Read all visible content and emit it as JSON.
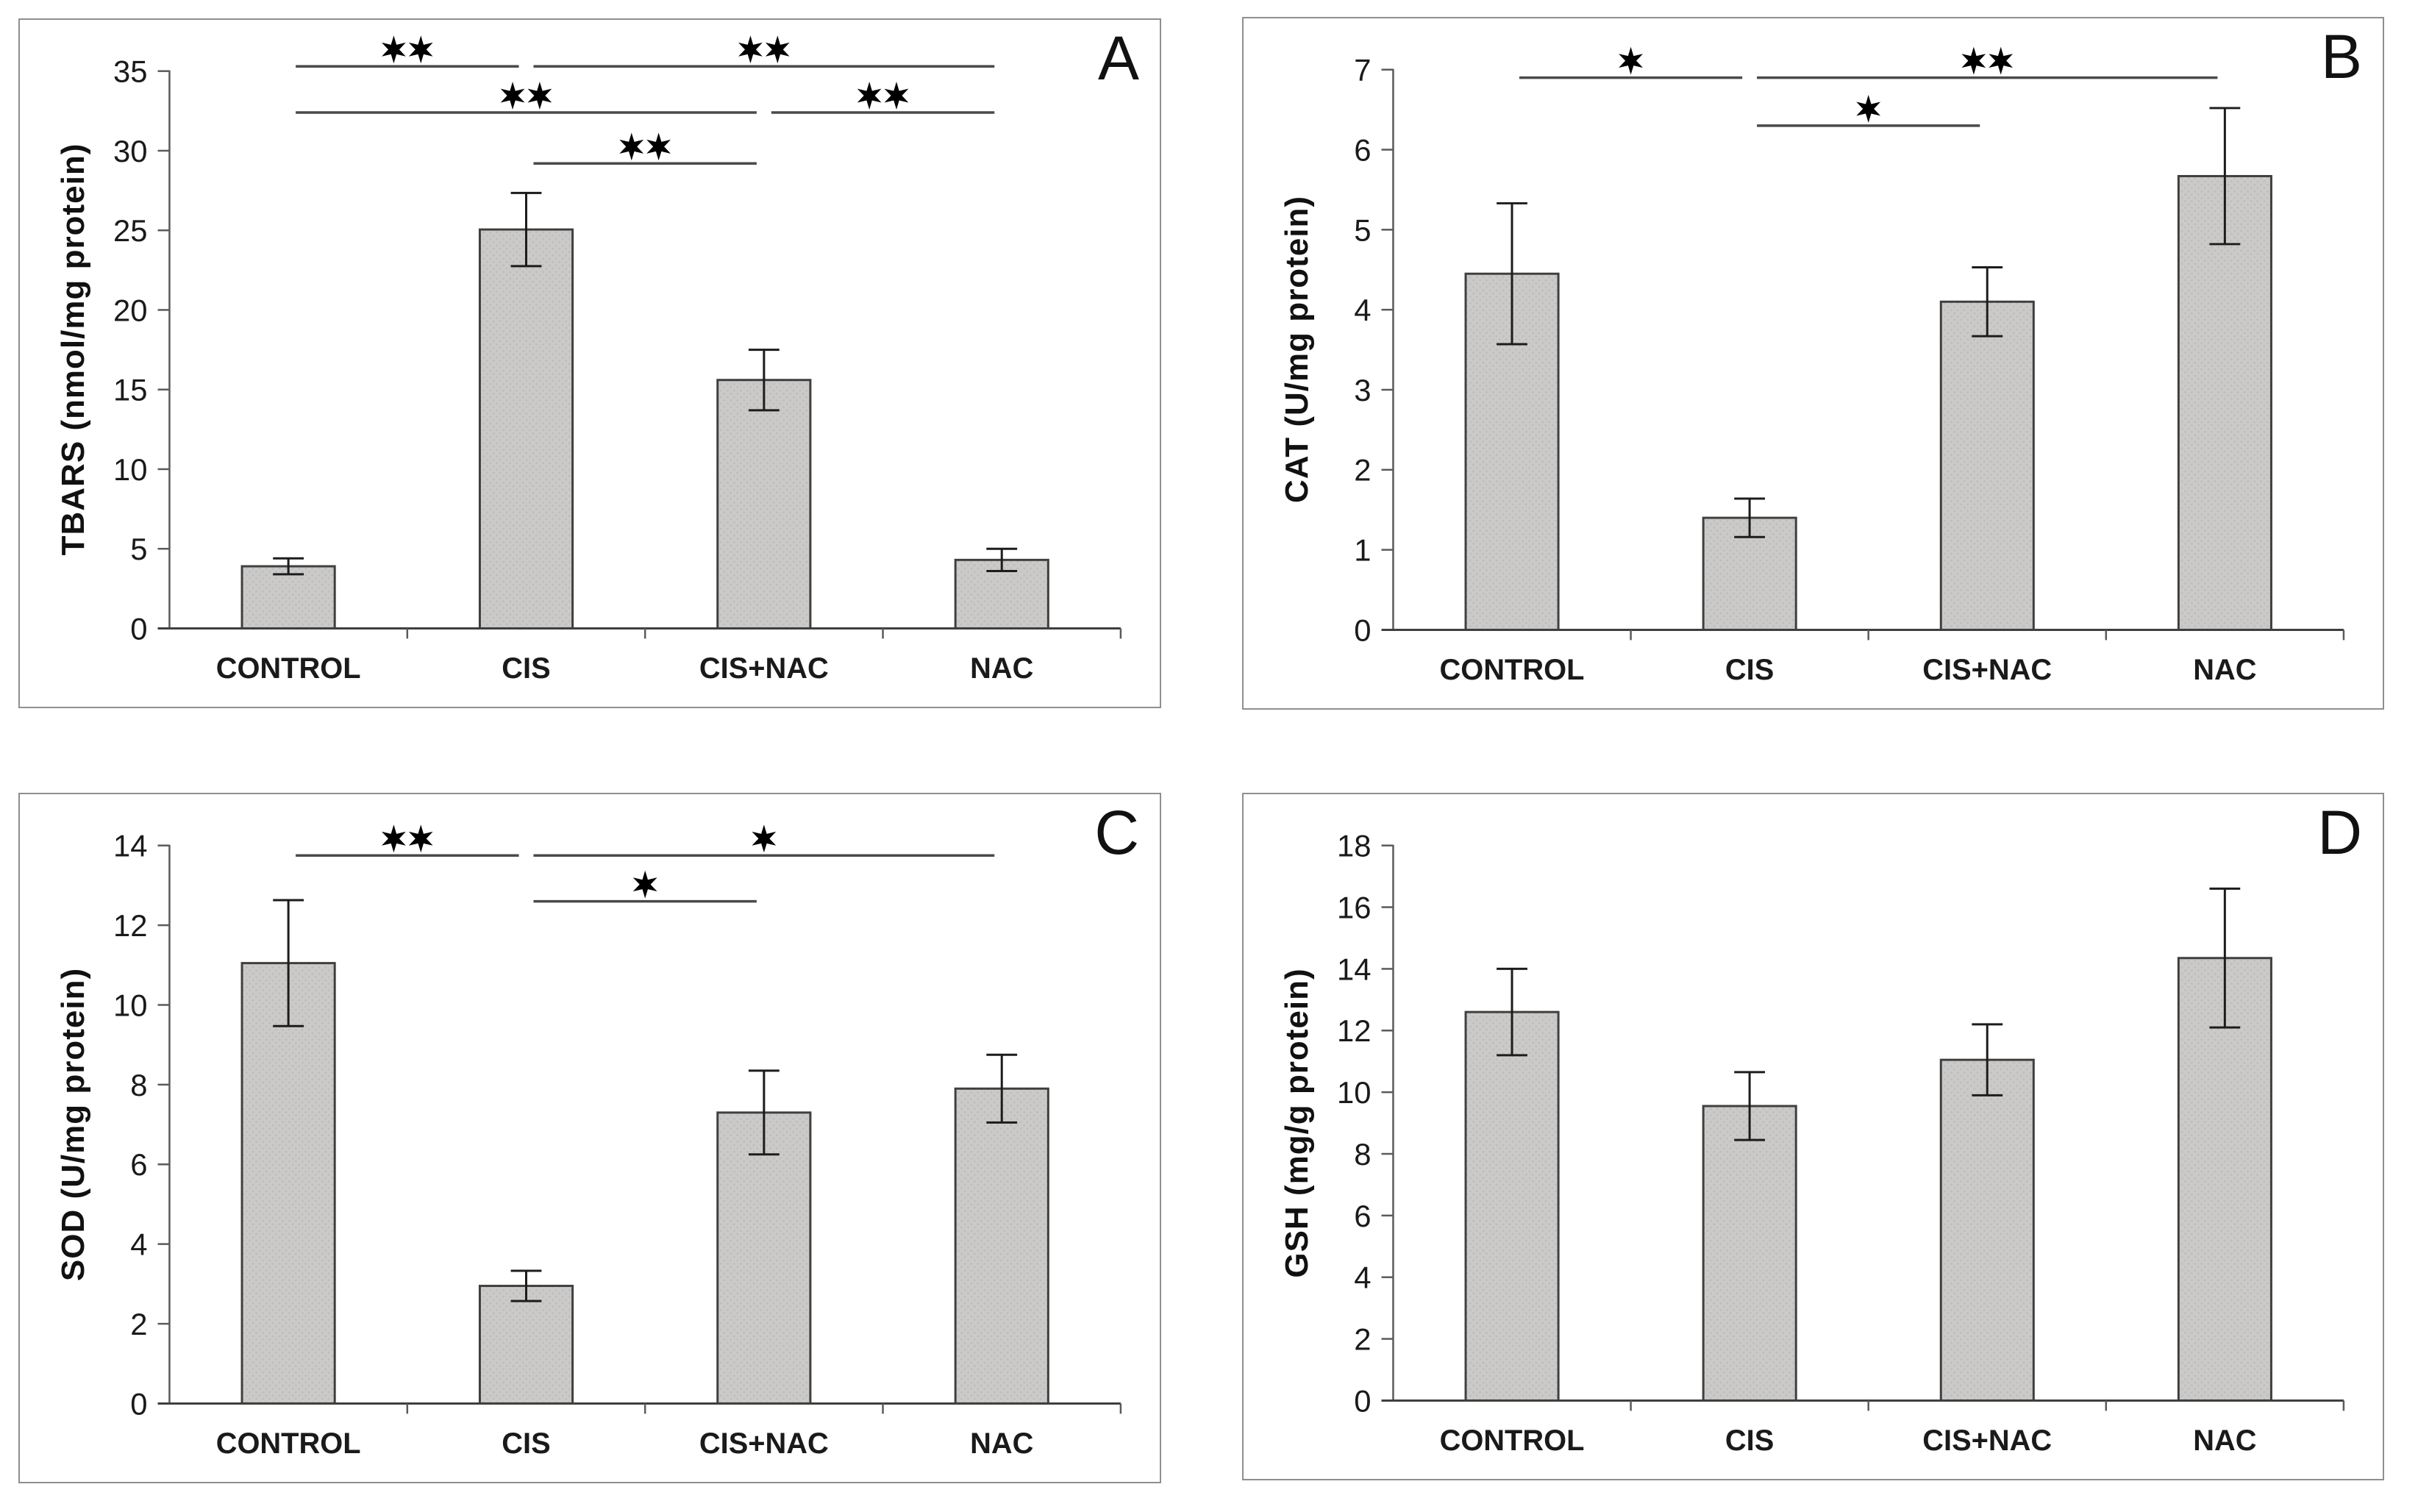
{
  "figure": {
    "description": "Four-panel bar chart of oxidative stress markers in four treatment groups",
    "panels_order": [
      "A",
      "B",
      "C",
      "D"
    ]
  },
  "style": {
    "background": "#ffffff",
    "panel_border": "#8f8f8f",
    "bar_fill": "#cbcac8",
    "bar_dot": "#bfbebc",
    "bar_stroke": "#3f3f3f",
    "axis_color": "#5a5a5a",
    "baseline_color": "#3f3f3f",
    "error_color": "#1c1c1c",
    "sig_color": "#4a4a4a",
    "star_color": "#000000",
    "text_color": "#1a1a1a"
  },
  "chart_data": [
    {
      "type": "bar",
      "panel_letter": "A",
      "title": "",
      "xlabel": "",
      "ylabel": "TBARS (nmol/mg protein)",
      "categories": [
        "CONTROL",
        "CIS",
        "CIS+NAC",
        "NAC"
      ],
      "values": [
        3.9,
        25.05,
        15.6,
        4.3
      ],
      "errors": [
        0.5,
        2.3,
        1.9,
        0.7
      ],
      "ylim": [
        0,
        35
      ],
      "ytick_step": 5,
      "grid": false,
      "legend": "none",
      "significance": [
        {
          "groups": [
            0,
            1
          ],
          "label": "**",
          "y": 35.3
        },
        {
          "groups": [
            1,
            3
          ],
          "label": "**",
          "y": 35.3
        },
        {
          "groups": [
            0,
            2
          ],
          "label": "**",
          "y": 32.4
        },
        {
          "groups": [
            2,
            3
          ],
          "label": "**",
          "y": 32.4
        },
        {
          "groups": [
            1,
            2
          ],
          "label": "**",
          "y": 29.2
        }
      ]
    },
    {
      "type": "bar",
      "panel_letter": "B",
      "title": "",
      "xlabel": "",
      "ylabel": "CAT (U/mg protein)",
      "categories": [
        "CONTROL",
        "CIS",
        "CIS+NAC",
        "NAC"
      ],
      "values": [
        4.45,
        1.4,
        4.1,
        5.67
      ],
      "errors": [
        0.88,
        0.24,
        0.43,
        0.85
      ],
      "ylim": [
        0,
        7
      ],
      "ytick_step": 1,
      "grid": false,
      "legend": "none",
      "significance": [
        {
          "groups": [
            0,
            1
          ],
          "label": "*",
          "y": 6.9
        },
        {
          "groups": [
            1,
            3
          ],
          "label": "**",
          "y": 6.9
        },
        {
          "groups": [
            1,
            2
          ],
          "label": "*",
          "y": 6.3
        }
      ]
    },
    {
      "type": "bar",
      "panel_letter": "C",
      "title": "",
      "xlabel": "",
      "ylabel": "SOD (U/mg protein)",
      "categories": [
        "CONTROL",
        "CIS",
        "CIS+NAC",
        "NAC"
      ],
      "values": [
        11.05,
        2.95,
        7.3,
        7.9
      ],
      "errors": [
        1.58,
        0.38,
        1.05,
        0.85
      ],
      "ylim": [
        0,
        14
      ],
      "ytick_step": 2,
      "grid": false,
      "legend": "none",
      "significance": [
        {
          "groups": [
            0,
            1
          ],
          "label": "**",
          "y": 13.75
        },
        {
          "groups": [
            1,
            3
          ],
          "label": "*",
          "y": 13.75
        },
        {
          "groups": [
            1,
            2
          ],
          "label": "*",
          "y": 12.6
        }
      ]
    },
    {
      "type": "bar",
      "panel_letter": "D",
      "title": "",
      "xlabel": "",
      "ylabel": "GSH (mg/g protein)",
      "categories": [
        "CONTROL",
        "CIS",
        "CIS+NAC",
        "NAC"
      ],
      "values": [
        12.6,
        9.55,
        11.05,
        14.35
      ],
      "errors": [
        1.4,
        1.1,
        1.15,
        2.25
      ],
      "ylim": [
        0,
        18
      ],
      "ytick_step": 2,
      "grid": false,
      "legend": "none",
      "significance": []
    }
  ]
}
